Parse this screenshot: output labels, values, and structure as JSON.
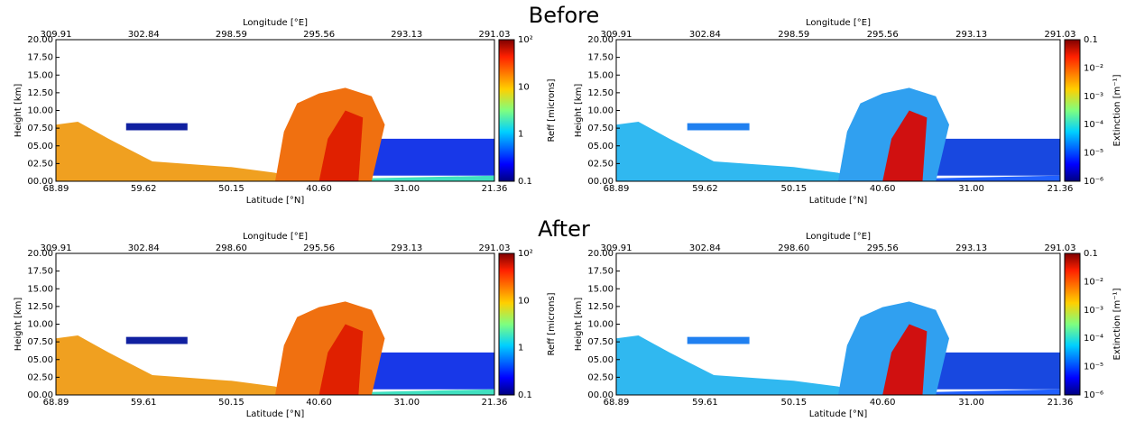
{
  "sections": [
    {
      "title": "Before",
      "panels": [
        {
          "top_axis_label": "Longitude [°E]",
          "top_ticks": [
            "309.91",
            "302.84",
            "298.59",
            "295.56",
            "293.13",
            "291.03"
          ],
          "y_axis_label": "Height [km]",
          "y_ticks": [
            "00.00",
            "02.50",
            "05.00",
            "07.50",
            "10.00",
            "12.50",
            "15.00",
            "17.50",
            "20.00"
          ],
          "x_axis_label": "Latitude [°N]",
          "x_ticks": [
            "68.89",
            "59.62",
            "50.15",
            "40.60",
            "31.00",
            "21.36"
          ],
          "colorbar_label": "Reff [microns]",
          "colorbar_ticks": [
            "0.1",
            "1",
            "10",
            "10²"
          ]
        },
        {
          "top_axis_label": "Longitude [°E]",
          "top_ticks": [
            "309.91",
            "302.84",
            "298.59",
            "295.56",
            "293.13",
            "291.03"
          ],
          "y_axis_label": "Height [km]",
          "y_ticks": [
            "00.00",
            "02.50",
            "05.00",
            "07.50",
            "10.00",
            "12.50",
            "15.00",
            "17.50",
            "20.00"
          ],
          "x_axis_label": "Latitude [°N]",
          "x_ticks": [
            "68.89",
            "59.62",
            "50.15",
            "40.60",
            "31.00",
            "21.36"
          ],
          "colorbar_label": "Extinction [m⁻¹]",
          "colorbar_ticks": [
            "10⁻⁶",
            "10⁻⁵",
            "10⁻⁴",
            "10⁻³",
            "10⁻²",
            "0.1"
          ]
        }
      ]
    },
    {
      "title": "After",
      "panels": [
        {
          "top_axis_label": "Longitude [°E]",
          "top_ticks": [
            "309.91",
            "302.84",
            "298.60",
            "295.56",
            "293.13",
            "291.03"
          ],
          "y_axis_label": "Height [km]",
          "y_ticks": [
            "00.00",
            "02.50",
            "05.00",
            "07.50",
            "10.00",
            "12.50",
            "15.00",
            "17.50",
            "20.00"
          ],
          "x_axis_label": "Latitude [°N]",
          "x_ticks": [
            "68.89",
            "59.61",
            "50.15",
            "40.60",
            "31.00",
            "21.36"
          ],
          "colorbar_label": "Reff [microns]",
          "colorbar_ticks": [
            "0.1",
            "1",
            "10",
            "10²"
          ]
        },
        {
          "top_axis_label": "Longitude [°E]",
          "top_ticks": [
            "309.91",
            "302.84",
            "298.60",
            "295.56",
            "293.13",
            "291.03"
          ],
          "y_axis_label": "Height [km]",
          "y_ticks": [
            "00.00",
            "02.50",
            "05.00",
            "07.50",
            "10.00",
            "12.50",
            "15.00",
            "17.50",
            "20.00"
          ],
          "x_axis_label": "Latitude [°N]",
          "x_ticks": [
            "68.89",
            "59.61",
            "50.15",
            "40.60",
            "31.00",
            "21.36"
          ],
          "colorbar_label": "Extinction [m⁻¹]",
          "colorbar_ticks": [
            "10⁻⁶",
            "10⁻⁵",
            "10⁻⁴",
            "10⁻³",
            "10⁻²",
            "0.1"
          ]
        }
      ]
    }
  ]
}
